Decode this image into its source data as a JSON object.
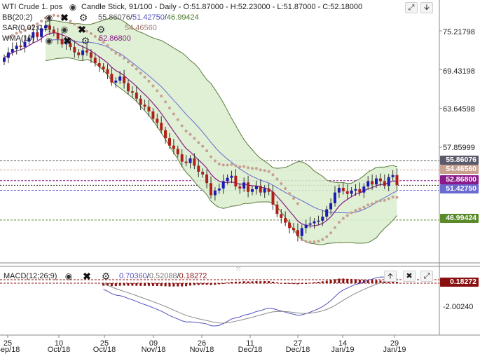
{
  "header": {
    "symbol": "WTI Crude 1. pos",
    "info": "Candle Stick, 91/100 - Daily - O:51.87000 - H:52.23000 - L:51.87000 - C:52.18000"
  },
  "indicators": {
    "bb": {
      "label": "BB(20;2)",
      "values": "55.86076/51.42750/46.99424"
    },
    "sar": {
      "label": "SAR(0,02;0,2)",
      "value": "54.46560"
    },
    "wma": {
      "label": "WMA(10)",
      "value": "52.86800"
    },
    "macd": {
      "label": "MACD(12;26;9)",
      "v1": "0.70360",
      "v2": "0.52088",
      "v3": "0.18272"
    }
  },
  "icons": {
    "eye": "eye-icon",
    "close": "close-icon",
    "settings": "gear-icon",
    "expand": "expand-icon",
    "down": "arrow-down-icon",
    "up": "arrow-up-icon"
  },
  "y_ticks": [
    "75.21798",
    "69.43198",
    "63.64598",
    "57.85999"
  ],
  "macd_tick": "-2.00240",
  "price_labels": {
    "bb_upper": "55.86076",
    "sar": "54.46560",
    "wma": "52.86800",
    "bb_mid": "51.42750",
    "bb_lower": "46.99424",
    "macd": "0.18272"
  },
  "x_ticks": [
    {
      "day": "25",
      "month": "Sep/18"
    },
    {
      "day": "10",
      "month": "Oct/18"
    },
    {
      "day": "25",
      "month": "Oct/18"
    },
    {
      "day": "09",
      "month": "Nov/18"
    },
    {
      "day": "26",
      "month": "Nov/18"
    },
    {
      "day": "11",
      "month": "Dec/18"
    },
    {
      "day": "27",
      "month": "Dec/18"
    },
    {
      "day": "14",
      "month": "Jan/19"
    },
    {
      "day": "29",
      "month": "Jan/19"
    }
  ],
  "colors": {
    "up": "#1c1cb4",
    "down": "#b0201a",
    "bb_fill": "#d9edce",
    "bb_line": "#5a7a3a",
    "wma": "#8a1a8a",
    "bb_mid": "#6a6ad0",
    "sar": "#c8a090",
    "macd_hist": "#8a1010",
    "macd_line": "#5050c0",
    "signal_line": "#8a8a8a"
  },
  "chart_data": {
    "type": "candlestick",
    "title": "WTI Crude 1. pos",
    "y_ticks": [
      75.21798,
      69.43198,
      63.64598,
      57.85999
    ],
    "x_tick_labels": [
      "25 Sep/18",
      "10 Oct/18",
      "25 Oct/18",
      "09 Nov/18",
      "26 Nov/18",
      "11 Dec/18",
      "27 Dec/18",
      "14 Jan/19",
      "29 Jan/19"
    ],
    "last_candle": {
      "open": 51.87,
      "high": 52.23,
      "low": 51.87,
      "close": 52.18
    },
    "closes": [
      71.2,
      72.0,
      72.5,
      73.0,
      72.8,
      73.6,
      74.2,
      75.0,
      74.3,
      75.6,
      76.0,
      75.4,
      74.9,
      74.0,
      73.2,
      73.4,
      72.8,
      72.0,
      71.6,
      72.3,
      72.0,
      71.2,
      70.4,
      69.9,
      69.5,
      68.8,
      67.5,
      67.8,
      68.4,
      67.4,
      66.2,
      66.0,
      65.1,
      64.2,
      63.9,
      63.2,
      62.1,
      61.5,
      60.4,
      59.2,
      58.1,
      57.6,
      56.8,
      55.7,
      55.5,
      56.2,
      55.1,
      54.2,
      53.8,
      52.5,
      50.7,
      51.4,
      51.7,
      52.8,
      53.3,
      53.6,
      52.0,
      51.7,
      52.6,
      51.2,
      51.6,
      52.1,
      51.1,
      51.7,
      51.2,
      49.3,
      47.9,
      47.3,
      46.6,
      45.8,
      45.5,
      44.6,
      45.8,
      46.3,
      46.5,
      46.8,
      46.9,
      47.5,
      48.6,
      49.5,
      51.1,
      51.8,
      51.3,
      50.9,
      51.4,
      51.6,
      51.1,
      52.0,
      52.8,
      52.3,
      53.2,
      52.8,
      52.1,
      53.4,
      53.7,
      52.2
    ],
    "bb_upper_last": 55.86076,
    "bb_mid_last": 51.4275,
    "bb_lower_last": 46.99424,
    "sar_last": 54.4656,
    "wma_last": 52.868,
    "macd": {
      "macd_last": 0.7036,
      "signal_last": 0.52088,
      "hist_last": 0.18272,
      "y_tick": -2.0024
    }
  }
}
